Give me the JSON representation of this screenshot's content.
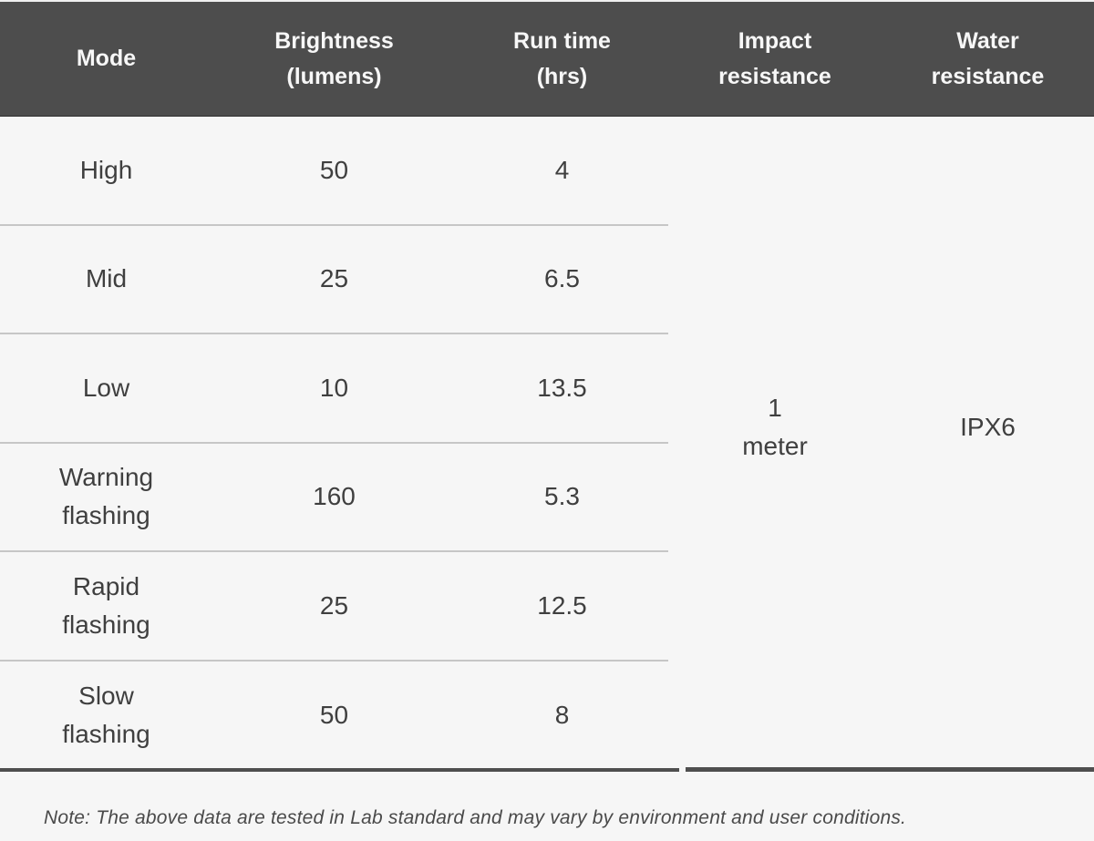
{
  "table": {
    "columns": [
      {
        "label": "Mode"
      },
      {
        "label": "Brightness\n(lumens)"
      },
      {
        "label": "Run time\n(hrs)"
      },
      {
        "label": "Impact\nresistance"
      },
      {
        "label": "Water\nresistance"
      }
    ],
    "rows": [
      {
        "mode": "High",
        "brightness": "50",
        "run_time": "4"
      },
      {
        "mode": "Mid",
        "brightness": "25",
        "run_time": "6.5"
      },
      {
        "mode": "Low",
        "brightness": "10",
        "run_time": "13.5"
      },
      {
        "mode": "Warning\nflashing",
        "brightness": "160",
        "run_time": "5.3"
      },
      {
        "mode": "Rapid\nflashing",
        "brightness": "25",
        "run_time": "12.5"
      },
      {
        "mode": "Slow\nflashing",
        "brightness": "50",
        "run_time": "8"
      }
    ],
    "impact_resistance": "1\nmeter",
    "water_resistance": "IPX6"
  },
  "note": "Note: The above data are tested in Lab standard and may vary by environment and user conditions.",
  "colors": {
    "header_bg": "#4d4d4d",
    "header_text": "#f7f7f7",
    "body_bg": "#f6f6f6",
    "body_text": "#3f3f3f",
    "divider": "#c6c6c6",
    "bottom_rule": "#4f4f4f"
  }
}
